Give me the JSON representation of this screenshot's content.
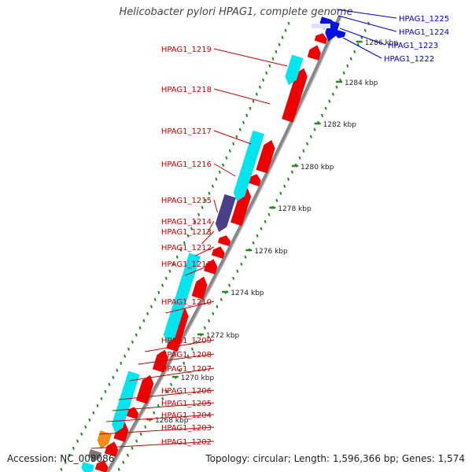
{
  "title": "Helicobacter pylori HPAG1, complete genome",
  "footer": {
    "accession": "Accession: NC_008086",
    "summary": "Topology: circular; Length: 1,596,366 bp; Genes: 1,574"
  },
  "colors": {
    "forward_gene": "#ee0000",
    "reverse_gene": "#00e5ee",
    "highlight_gene": "#0011dd",
    "dark_gene": "#4b3f8c",
    "orange_gene": "#f08c1a",
    "gray_gene": "#777777",
    "left_label": "#cc0000",
    "right_label": "#0000cc",
    "tick": "#228822",
    "backbone": "#888888"
  },
  "scale_ticks": [
    {
      "label": "1268 kbp",
      "kbp": 1268
    },
    {
      "label": "1270 kbp",
      "kbp": 1270
    },
    {
      "label": "1272 kbp",
      "kbp": 1272
    },
    {
      "label": "1274 kbp",
      "kbp": 1274
    },
    {
      "label": "1276 kbp",
      "kbp": 1276
    },
    {
      "label": "1278 kbp",
      "kbp": 1278
    },
    {
      "label": "1280 kbp",
      "kbp": 1280
    },
    {
      "label": "1282 kbp",
      "kbp": 1282
    },
    {
      "label": "1284 kbp",
      "kbp": 1284
    },
    {
      "label": "1286 kbp",
      "kbp": 1286
    }
  ],
  "left_labels": [
    "HPAG1_1219",
    "HPAG1_1218",
    "HPAG1_1217",
    "HPAG1_1216",
    "HPAG1_1215",
    "HPAG1_1214",
    "HPAG1_1213",
    "HPAG1_1212",
    "HPAG1_1211",
    "HPAG1_1210",
    "HPAG1_1209",
    "HPAG1_1208",
    "HPAG1_1207",
    "HPAG1_1206",
    "HPAG1_1205",
    "HPAG1_1204",
    "HPAG1_1203",
    "HPAG1_1202"
  ],
  "right_labels": [
    "HPAG1_1225",
    "HPAG1_1224",
    "HPAG1_1223",
    "HPAG1_1222"
  ]
}
